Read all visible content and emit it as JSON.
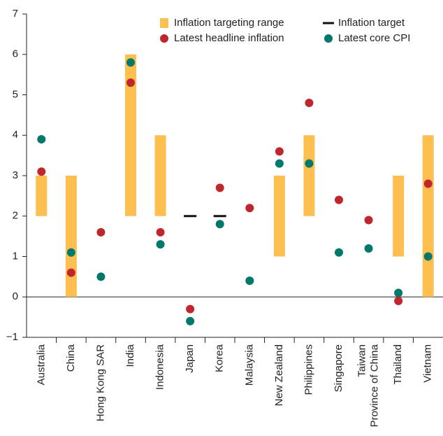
{
  "chart_data": {
    "type": "range_dot",
    "categories": [
      "Australia",
      "China",
      "Hong Kong SAR",
      "India",
      "Indonesia",
      "Japan",
      "Korea",
      "Malaysia",
      "New Zealand",
      "Philippines",
      "Singapore",
      "Taiwan\nProvince of China",
      "Thailand",
      "Vietnam"
    ],
    "series": [
      {
        "name": "Inflation targeting range",
        "type": "range",
        "color": "#fdbf4f",
        "low": [
          2,
          0,
          null,
          2,
          2,
          null,
          null,
          null,
          1,
          2,
          null,
          null,
          1,
          0
        ],
        "high": [
          3,
          3,
          null,
          6,
          4,
          null,
          null,
          null,
          3,
          4,
          null,
          null,
          3,
          4
        ]
      },
      {
        "name": "Inflation target",
        "type": "target",
        "color": "#111111",
        "values": [
          null,
          null,
          null,
          null,
          null,
          2,
          2,
          null,
          null,
          null,
          null,
          null,
          null,
          null
        ]
      },
      {
        "name": "Latest headline inflation",
        "type": "dot",
        "color": "#c0272d",
        "values": [
          3.1,
          0.6,
          1.6,
          5.3,
          1.6,
          -0.3,
          2.7,
          2.2,
          3.6,
          4.8,
          2.4,
          1.9,
          -0.1,
          2.8
        ]
      },
      {
        "name": "Latest core CPI",
        "type": "dot",
        "color": "#00796b",
        "values": [
          3.9,
          1.1,
          0.5,
          5.8,
          1.3,
          -0.6,
          1.8,
          0.4,
          3.3,
          3.3,
          1.1,
          1.2,
          0.1,
          1.0
        ]
      }
    ],
    "ylim": [
      -1,
      7
    ],
    "yticks": [
      {
        "value": -1,
        "label": "−1"
      },
      0,
      1,
      2,
      3,
      4,
      5,
      6,
      7
    ],
    "legend": "upper right"
  }
}
